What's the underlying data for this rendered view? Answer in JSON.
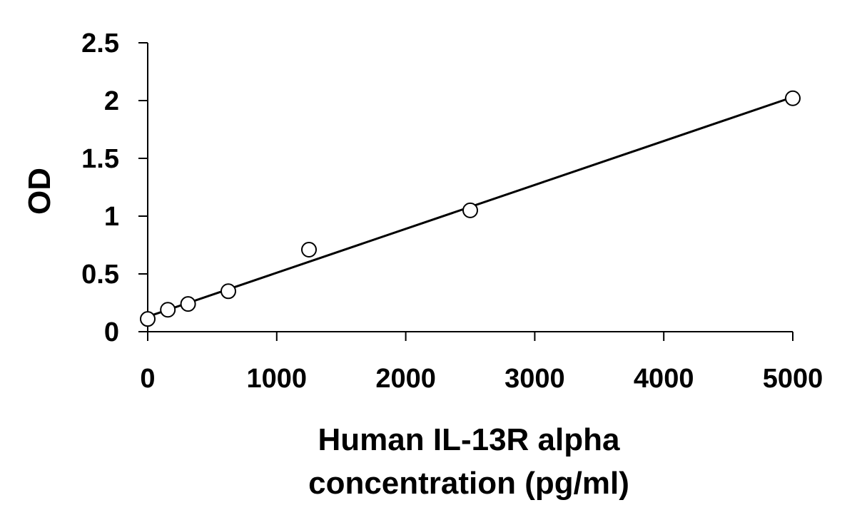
{
  "chart_data": {
    "type": "scatter",
    "title": "",
    "xlabel_lines": [
      "Human IL-13R alpha",
      "concentration (pg/ml)"
    ],
    "ylabel": "OD",
    "xlim": [
      0,
      5000
    ],
    "ylim": [
      0,
      2.5
    ],
    "x_ticks": [
      0,
      1000,
      2000,
      3000,
      4000,
      5000
    ],
    "y_ticks": [
      0,
      0.5,
      1,
      1.5,
      2,
      2.5
    ],
    "y_tick_labels": [
      "0",
      "0.5",
      "1",
      "1.5",
      "2",
      "2.5"
    ],
    "grid": false,
    "legend": "none",
    "series": [
      {
        "x": [
          0,
          156,
          313,
          625,
          1250,
          2500,
          5000
        ],
        "y": [
          0.11,
          0.19,
          0.24,
          0.35,
          0.71,
          1.05,
          2.02
        ]
      }
    ],
    "trendline": {
      "type": "linear",
      "x": [
        0,
        5000
      ],
      "y": [
        0.13,
        2.03
      ]
    },
    "colors": {
      "line": "#000000",
      "marker_stroke": "#000000",
      "marker_fill": "#ffffff"
    }
  }
}
